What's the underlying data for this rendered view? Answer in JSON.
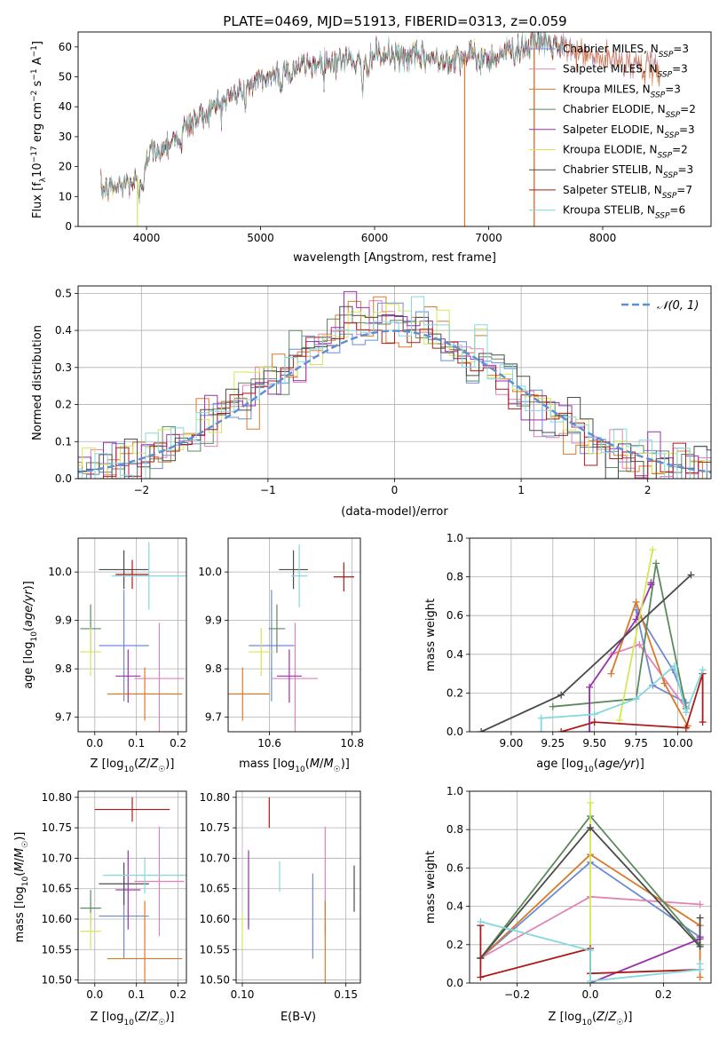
{
  "figure_title": "PLATE=0469, MJD=51913, FIBERID=0313, z=0.059",
  "colors": {
    "Chabrier MILES": "#6c8bd5",
    "Salpeter MILES": "#e282b7",
    "Kroupa MILES": "#d97a2b",
    "Chabrier ELODIE": "#5b8a5f",
    "Salpeter ELODIE": "#9b2fae",
    "Kroupa ELODIE": "#d7e655",
    "Chabrier STELIB": "#4b4b4b",
    "Salpeter STELIB": "#ad1a1a",
    "Kroupa STELIB": "#84d8dd",
    "normal": "#5b8fd6"
  },
  "chart_data": [
    {
      "id": "spectrum",
      "type": "line",
      "title": "PLATE=0469, MJD=51913, FIBERID=0313, z=0.059",
      "xlabel": "wavelength [Angstrom, rest frame]",
      "ylabel_main": "Flux [f",
      "ylabel_sub_lambda": "λ",
      "ylabel_rest": "10",
      "ylabel_exp": "−17",
      "ylabel_units": " erg cm",
      "ylabel_exp2": "−2",
      "ylabel_s": " s",
      "ylabel_exp3": "−1",
      "ylabel_A": " A",
      "ylabel_exp4": "−1",
      "ylabel_close": "]",
      "xlim": [
        3400,
        8950
      ],
      "ylim": [
        0,
        65
      ],
      "xticks": [
        4000,
        5000,
        6000,
        7000,
        8000
      ],
      "yticks": [
        0,
        10,
        20,
        30,
        40,
        50,
        60
      ],
      "legend_position": "right",
      "legend": [
        {
          "label": "Chabrier MILES, N",
          "sub": "SSP",
          "val": "=3",
          "key": "Chabrier MILES"
        },
        {
          "label": "Salpeter MILES, N",
          "sub": "SSP",
          "val": "=3",
          "key": "Salpeter MILES"
        },
        {
          "label": "Kroupa MILES, N",
          "sub": "SSP",
          "val": "=3",
          "key": "Kroupa MILES"
        },
        {
          "label": "Chabrier ELODIE, N",
          "sub": "SSP",
          "val": "=2",
          "key": "Chabrier ELODIE"
        },
        {
          "label": "Salpeter ELODIE, N",
          "sub": "SSP",
          "val": "=3",
          "key": "Salpeter ELODIE"
        },
        {
          "label": "Kroupa ELODIE, N",
          "sub": "SSP",
          "val": "=2",
          "key": "Kroupa ELODIE"
        },
        {
          "label": "Chabrier STELIB, N",
          "sub": "SSP",
          "val": "=3",
          "key": "Chabrier STELIB"
        },
        {
          "label": "Salpeter STELIB, N",
          "sub": "SSP",
          "val": "=7",
          "key": "Salpeter STELIB"
        },
        {
          "label": "Kroupa STELIB, N",
          "sub": "SSP",
          "val": "=6",
          "key": "Kroupa STELIB"
        }
      ],
      "continuum": [
        [
          3600,
          12
        ],
        [
          3800,
          14
        ],
        [
          3950,
          16
        ],
        [
          4000,
          24
        ],
        [
          4200,
          28
        ],
        [
          4400,
          35
        ],
        [
          4600,
          40
        ],
        [
          4800,
          45
        ],
        [
          5000,
          49
        ],
        [
          5200,
          52
        ],
        [
          5400,
          54
        ],
        [
          5600,
          55
        ],
        [
          5800,
          56
        ],
        [
          5900,
          54
        ],
        [
          6000,
          57
        ],
        [
          6200,
          57
        ],
        [
          6400,
          56.5
        ],
        [
          6600,
          56
        ],
        [
          6800,
          57
        ],
        [
          7000,
          56
        ],
        [
          7200,
          59
        ],
        [
          7400,
          61
        ],
        [
          7500,
          62
        ],
        [
          7600,
          60
        ],
        [
          7800,
          58
        ],
        [
          8000,
          56
        ],
        [
          8200,
          55
        ],
        [
          8400,
          53
        ],
        [
          8500,
          52
        ]
      ],
      "spikes": [
        [
          3920,
          0
        ],
        [
          6790,
          0
        ],
        [
          7400,
          0
        ]
      ]
    },
    {
      "id": "residuals",
      "type": "histogram",
      "xlabel": "(data-model)/error",
      "ylabel": "Normed distribution",
      "xlim": [
        -2.5,
        2.5
      ],
      "ylim": [
        0,
        0.52
      ],
      "xticks": [
        -2,
        -1,
        0,
        1,
        2
      ],
      "yticks": [
        0.0,
        0.1,
        0.2,
        0.3,
        0.4,
        0.5
      ],
      "normal_label": "𝒩(0, 1)",
      "legend_position": "top-right",
      "bin_width": 0.1
    },
    {
      "id": "age_vs_Z",
      "type": "errorbar",
      "xlabel": "Z [log",
      "xlabel_sub": "10",
      "xlabel_rest": "(Z/Z",
      "xlabel_sun": "☉",
      "xlabel_close": ")]",
      "ylabel": "age  [log",
      "ylabel_sub": "10",
      "ylabel_rest": "(age/yr)]",
      "xlim": [
        -0.04,
        0.22
      ],
      "ylim": [
        9.67,
        10.07
      ],
      "xticks": [
        0.0,
        0.1,
        0.2
      ],
      "yticks": [
        9.7,
        9.8,
        9.9,
        10.0
      ],
      "points": [
        {
          "key": "Chabrier MILES",
          "x": 0.07,
          "xerr": 0.06,
          "y": 9.848,
          "yerr": 0.115
        },
        {
          "key": "Salpeter MILES",
          "x": 0.155,
          "xerr": 0.06,
          "y": 9.78,
          "yerr": 0.115
        },
        {
          "key": "Kroupa MILES",
          "x": 0.12,
          "xerr": 0.09,
          "y": 9.748,
          "yerr": 0.055
        },
        {
          "key": "Chabrier ELODIE",
          "x": -0.01,
          "xerr": 0.025,
          "y": 9.883,
          "yerr": 0.05
        },
        {
          "key": "Salpeter ELODIE",
          "x": 0.08,
          "xerr": 0.03,
          "y": 9.785,
          "yerr": 0.055
        },
        {
          "key": "Kroupa ELODIE",
          "x": -0.01,
          "xerr": 0.025,
          "y": 9.835,
          "yerr": 0.05
        },
        {
          "key": "Chabrier STELIB",
          "x": 0.07,
          "xerr": 0.06,
          "y": 10.005,
          "yerr": 0.04
        },
        {
          "key": "Salpeter STELIB",
          "x": 0.09,
          "xerr": 0.04,
          "y": 9.995,
          "yerr": 0.03
        },
        {
          "key": "Kroupa STELIB",
          "x": 0.13,
          "xerr": 0.09,
          "y": 9.992,
          "yerr": 0.07
        }
      ]
    },
    {
      "id": "age_vs_mass",
      "type": "errorbar",
      "xlabel": "mass [log",
      "xlabel_sub": "10",
      "xlabel_rest": "(M/M",
      "xlabel_sun": "☉",
      "xlabel_close": ")]",
      "xlim": [
        10.5,
        10.82
      ],
      "ylim": [
        9.67,
        10.07
      ],
      "xticks": [
        10.6,
        10.8
      ],
      "yticks": [
        9.7,
        9.8,
        9.9,
        10.0
      ],
      "points": [
        {
          "key": "Chabrier MILES",
          "x": 10.605,
          "xerr": 0.055,
          "y": 9.848,
          "yerr": 0.115
        },
        {
          "key": "Salpeter MILES",
          "x": 10.662,
          "xerr": 0.055,
          "y": 9.78,
          "yerr": 0.115
        },
        {
          "key": "Kroupa MILES",
          "x": 10.535,
          "xerr": 0.065,
          "y": 9.748,
          "yerr": 0.055
        },
        {
          "key": "Chabrier ELODIE",
          "x": 10.618,
          "xerr": 0.02,
          "y": 9.883,
          "yerr": 0.05
        },
        {
          "key": "Salpeter ELODIE",
          "x": 10.648,
          "xerr": 0.03,
          "y": 9.785,
          "yerr": 0.055
        },
        {
          "key": "Kroupa ELODIE",
          "x": 10.58,
          "xerr": 0.03,
          "y": 9.835,
          "yerr": 0.05
        },
        {
          "key": "Chabrier STELIB",
          "x": 10.658,
          "xerr": 0.035,
          "y": 10.005,
          "yerr": 0.04
        },
        {
          "key": "Salpeter STELIB",
          "x": 10.78,
          "xerr": 0.025,
          "y": 9.99,
          "yerr": 0.03
        },
        {
          "key": "Kroupa STELIB",
          "x": 10.672,
          "xerr": 0.02,
          "y": 9.992,
          "yerr": 0.065
        }
      ]
    },
    {
      "id": "weight_vs_age",
      "type": "line",
      "xlabel": "age  [log",
      "xlabel_sub": "10",
      "xlabel_rest": "(age/yr)]",
      "ylabel": "mass weight",
      "xlim": [
        8.75,
        10.2
      ],
      "ylim": [
        0,
        1.0
      ],
      "xticks": [
        9.0,
        9.25,
        9.5,
        9.75,
        10.0
      ],
      "xtick_labels": [
        "9.00",
        "9.25",
        "9.50",
        "9.75",
        "10.00"
      ],
      "yticks": [
        0.0,
        0.2,
        0.4,
        0.6,
        0.8,
        1.0
      ],
      "series": [
        {
          "key": "Chabrier MILES",
          "x": [
            9.75,
            9.85,
            10.05,
            9.97,
            9.75
          ],
          "y": [
            0.63,
            0.24,
            0.15,
            0.32,
            0.63
          ]
        },
        {
          "key": "Salpeter MILES",
          "x": [
            9.6,
            9.77,
            10.05,
            10.05
          ],
          "y": [
            0.4,
            0.45,
            0.12,
            0.13
          ]
        },
        {
          "key": "Kroupa MILES",
          "x": [
            9.6,
            9.75,
            9.92,
            10.06
          ],
          "y": [
            0.3,
            0.67,
            0.25,
            0.03
          ]
        },
        {
          "key": "Chabrier ELODIE",
          "x": [
            9.25,
            9.75,
            9.87,
            10.05
          ],
          "y": [
            0.13,
            0.17,
            0.87,
            0.12
          ]
        },
        {
          "key": "Salpeter ELODIE",
          "x": [
            9.47,
            9.47,
            9.75,
            9.84,
            9.84
          ],
          "y": [
            0.0,
            0.23,
            0.58,
            0.76,
            0.77
          ]
        },
        {
          "key": "Kroupa ELODIE",
          "x": [
            9.65,
            9.85
          ],
          "y": [
            0.06,
            0.94
          ]
        },
        {
          "key": "Chabrier STELIB",
          "x": [
            8.82,
            9.3,
            10.08
          ],
          "y": [
            0.0,
            0.19,
            0.81
          ]
        },
        {
          "key": "Salpeter STELIB",
          "x": [
            9.3,
            9.5,
            10.05,
            10.15,
            10.15
          ],
          "y": [
            0.0,
            0.05,
            0.02,
            0.3,
            0.05
          ]
        },
        {
          "key": "Kroupa STELIB",
          "x": [
            9.18,
            9.18,
            9.5,
            9.75,
            9.98,
            10.05,
            10.15
          ],
          "y": [
            0.0,
            0.07,
            0.09,
            0.17,
            0.34,
            0.1,
            0.32
          ]
        }
      ]
    },
    {
      "id": "mass_vs_Z",
      "type": "errorbar",
      "xlabel": "Z [log",
      "xlabel_sub": "10",
      "xlabel_rest": "(Z/Z",
      "xlabel_sun": "☉",
      "xlabel_close": ")]",
      "ylabel": "mass [log",
      "ylabel_sub": "10",
      "ylabel_rest": "(M/M",
      "ylabel_sun": "☉",
      "ylabel_close": ")]",
      "xlim": [
        -0.04,
        0.22
      ],
      "ylim": [
        10.495,
        10.81
      ],
      "xticks": [
        0.0,
        0.1,
        0.2
      ],
      "yticks": [
        10.5,
        10.55,
        10.6,
        10.65,
        10.7,
        10.75,
        10.8
      ],
      "ytick_labels": [
        "10.50",
        "10.55",
        "10.60",
        "10.65",
        "10.70",
        "10.75",
        "10.80"
      ],
      "points": [
        {
          "key": "Chabrier MILES",
          "x": 0.07,
          "xerr": 0.06,
          "y": 10.605,
          "yerr": 0.07
        },
        {
          "key": "Salpeter MILES",
          "x": 0.155,
          "xerr": 0.06,
          "y": 10.662,
          "yerr": 0.09
        },
        {
          "key": "Kroupa MILES",
          "x": 0.12,
          "xerr": 0.09,
          "y": 10.535,
          "yerr": 0.095
        },
        {
          "key": "Chabrier ELODIE",
          "x": -0.01,
          "xerr": 0.025,
          "y": 10.618,
          "yerr": 0.03
        },
        {
          "key": "Salpeter ELODIE",
          "x": 0.08,
          "xerr": 0.03,
          "y": 10.648,
          "yerr": 0.065
        },
        {
          "key": "Kroupa ELODIE",
          "x": -0.01,
          "xerr": 0.025,
          "y": 10.58,
          "yerr": 0.03
        },
        {
          "key": "Chabrier STELIB",
          "x": 0.07,
          "xerr": 0.06,
          "y": 10.658,
          "yerr": 0.035
        },
        {
          "key": "Salpeter STELIB",
          "x": 0.09,
          "xerr": 0.09,
          "y": 10.78,
          "yerr": 0.02
        },
        {
          "key": "Kroupa STELIB",
          "x": 0.12,
          "xerr": 0.1,
          "y": 10.672,
          "yerr": 0.03
        }
      ]
    },
    {
      "id": "mass_vs_EBV",
      "type": "errorbar",
      "xlabel": "E(B-V)",
      "xlim": [
        0.097,
        0.157
      ],
      "ylim": [
        10.495,
        10.81
      ],
      "xticks": [
        0.1,
        0.15
      ],
      "xtick_labels": [
        "0.10",
        "0.15"
      ],
      "yticks": [
        10.5,
        10.55,
        10.6,
        10.65,
        10.7,
        10.75,
        10.8
      ],
      "ytick_labels": [
        "10.50",
        "10.55",
        "10.60",
        "10.65",
        "10.70",
        "10.75",
        "10.80"
      ],
      "points": [
        {
          "key": "Chabrier MILES",
          "x": 0.134,
          "xerr": 0,
          "y": 10.605,
          "yerr": 0.07
        },
        {
          "key": "Salpeter MILES",
          "x": 0.14,
          "xerr": 0,
          "y": 10.662,
          "yerr": 0.09
        },
        {
          "key": "Kroupa MILES",
          "x": 0.14,
          "xerr": 0,
          "y": 10.535,
          "yerr": 0.095
        },
        {
          "key": "Chabrier ELODIE",
          "x": 0.103,
          "xerr": 0,
          "y": 10.618,
          "yerr": 0.03
        },
        {
          "key": "Salpeter ELODIE",
          "x": 0.103,
          "xerr": 0,
          "y": 10.648,
          "yerr": 0.065
        },
        {
          "key": "Kroupa ELODIE",
          "x": 0.1,
          "xerr": 0,
          "y": 10.58,
          "yerr": 0.03
        },
        {
          "key": "Chabrier STELIB",
          "x": 0.154,
          "xerr": 0,
          "y": 10.65,
          "yerr": 0.038
        },
        {
          "key": "Salpeter STELIB",
          "x": 0.113,
          "xerr": 0,
          "y": 10.775,
          "yerr": 0.025
        },
        {
          "key": "Kroupa STELIB",
          "x": 0.118,
          "xerr": 0,
          "y": 10.67,
          "yerr": 0.025
        }
      ]
    },
    {
      "id": "weight_vs_Z",
      "type": "line",
      "xlabel": "Z [log",
      "xlabel_sub": "10",
      "xlabel_rest": "(Z/Z",
      "xlabel_sun": "☉",
      "xlabel_close": ")]",
      "ylabel": "mass weight",
      "xlim": [
        -0.33,
        0.33
      ],
      "ylim": [
        0,
        1.0
      ],
      "xticks": [
        -0.2,
        0.0,
        0.2
      ],
      "xtick_labels": [
        "−0.2",
        "0.0",
        "0.2"
      ],
      "yticks": [
        0.0,
        0.2,
        0.4,
        0.6,
        0.8,
        1.0
      ],
      "series": [
        {
          "key": "Chabrier MILES",
          "x": [
            -0.3,
            0.0,
            0.3
          ],
          "y": [
            0.13,
            0.63,
            0.24
          ]
        },
        {
          "key": "Salpeter MILES",
          "x": [
            -0.3,
            0.0,
            0.3
          ],
          "y": [
            0.13,
            0.45,
            0.41
          ]
        },
        {
          "key": "Kroupa MILES",
          "x": [
            -0.3,
            0.0,
            0.3,
            0.3
          ],
          "y": [
            0.13,
            0.67,
            0.3,
            0.03
          ]
        },
        {
          "key": "Chabrier ELODIE",
          "x": [
            -0.3,
            0.0,
            0.3
          ],
          "y": [
            0.13,
            0.87,
            0.2
          ]
        },
        {
          "key": "Salpeter ELODIE",
          "x": [
            0.0,
            0.3,
            0.3
          ],
          "y": [
            0.0,
            0.23,
            0.24
          ]
        },
        {
          "key": "Kroupa ELODIE",
          "x": [
            0.0,
            0.0
          ],
          "y": [
            0.0,
            0.94
          ]
        },
        {
          "key": "Chabrier STELIB",
          "x": [
            -0.3,
            0.0,
            0.3,
            0.3
          ],
          "y": [
            0.13,
            0.81,
            0.19,
            0.34
          ]
        },
        {
          "key": "Salpeter STELIB",
          "x": [
            -0.3,
            -0.3,
            0.0,
            0.0,
            0.3
          ],
          "y": [
            0.3,
            0.03,
            0.18,
            0.05,
            0.07
          ]
        },
        {
          "key": "Kroupa STELIB",
          "x": [
            -0.3,
            0.0,
            0.0,
            0.3,
            0.3
          ],
          "y": [
            0.32,
            0.17,
            0.01,
            0.07,
            0.1
          ]
        }
      ]
    }
  ]
}
